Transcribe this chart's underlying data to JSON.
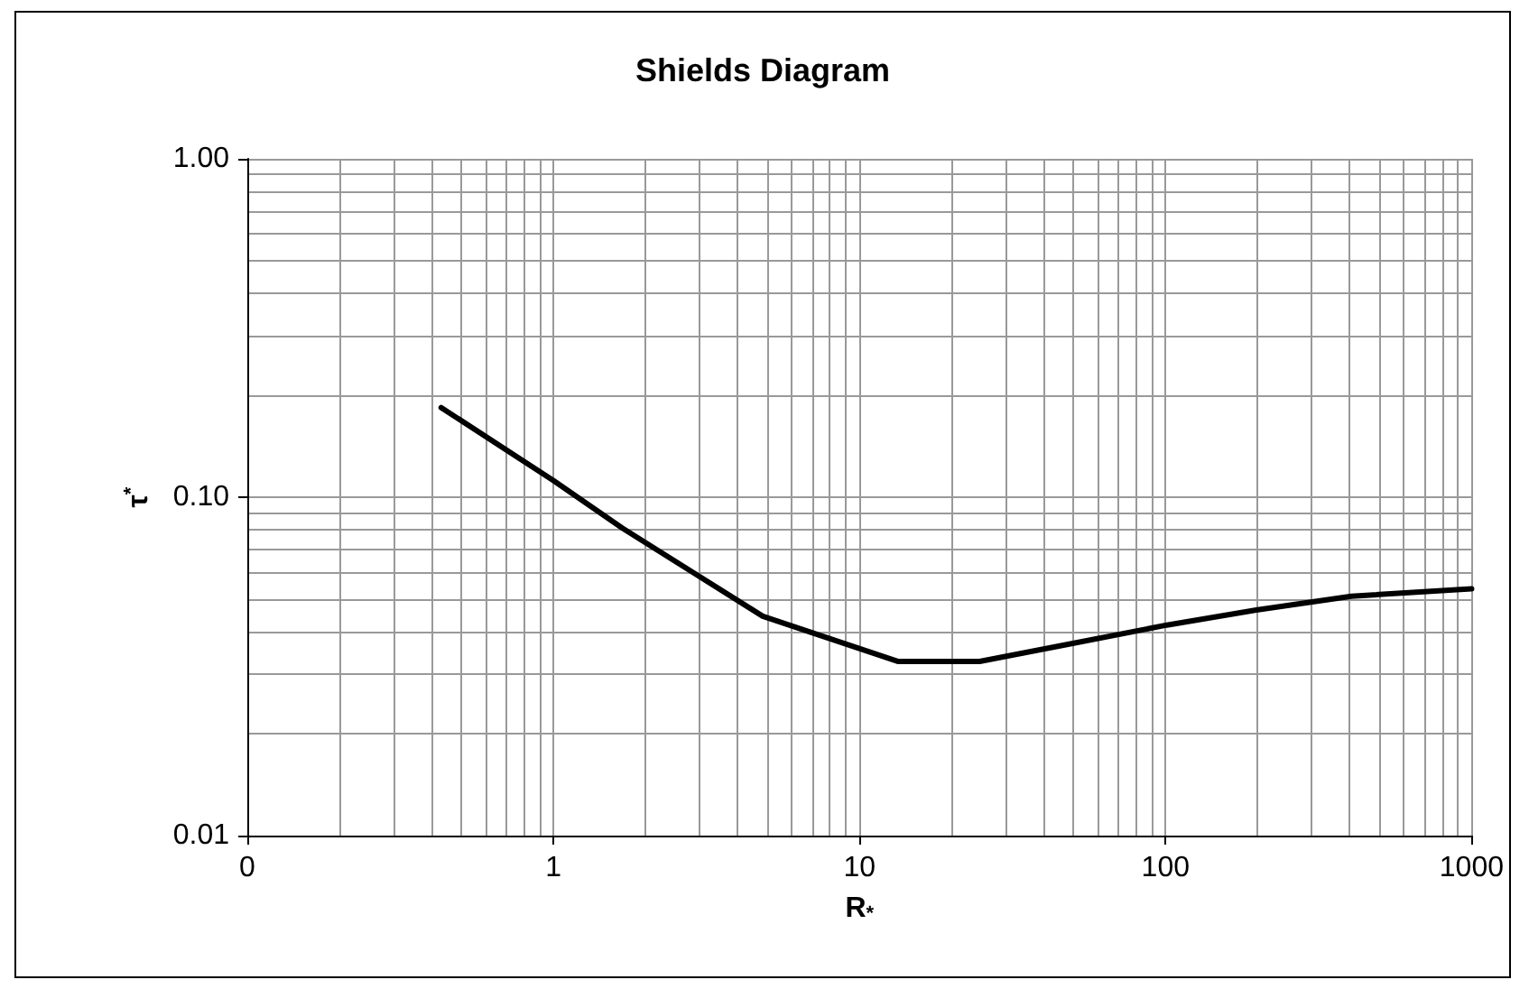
{
  "chart_data": {
    "type": "line",
    "title": "Shields Diagram",
    "xlabel": "R$_{*}$",
    "ylabel": "τ$^{*}$",
    "log": "xy",
    "grid": true,
    "marker": "none",
    "line_style": "solid",
    "xlim": [
      0.1,
      1000
    ],
    "ylim": [
      0.01,
      1
    ],
    "xticks": [
      {
        "value": 0.1,
        "label": "0"
      },
      {
        "value": 0.2,
        "label": null
      },
      {
        "value": 0.3,
        "label": null
      },
      {
        "value": 0.4,
        "label": null
      },
      {
        "value": 0.5,
        "label": null
      },
      {
        "value": 0.6,
        "label": null
      },
      {
        "value": 0.7,
        "label": null
      },
      {
        "value": 0.8,
        "label": null
      },
      {
        "value": 0.9,
        "label": null
      },
      1,
      {
        "value": 2,
        "label": null
      },
      {
        "value": 3,
        "label": null
      },
      {
        "value": 4,
        "label": null
      },
      {
        "value": 5,
        "label": null
      },
      {
        "value": 6,
        "label": null
      },
      {
        "value": 7,
        "label": null
      },
      {
        "value": 8,
        "label": null
      },
      {
        "value": 9,
        "label": null
      },
      10,
      {
        "value": 20,
        "label": null
      },
      {
        "value": 30,
        "label": null
      },
      {
        "value": 40,
        "label": null
      },
      {
        "value": 50,
        "label": null
      },
      {
        "value": 60,
        "label": null
      },
      {
        "value": 70,
        "label": null
      },
      {
        "value": 80,
        "label": null
      },
      {
        "value": 90,
        "label": null
      },
      100,
      {
        "value": 200,
        "label": null
      },
      {
        "value": 300,
        "label": null
      },
      {
        "value": 400,
        "label": null
      },
      {
        "value": 500,
        "label": null
      },
      {
        "value": 600,
        "label": null
      },
      {
        "value": 700,
        "label": null
      },
      {
        "value": 800,
        "label": null
      },
      {
        "value": 900,
        "label": null
      },
      1000
    ],
    "yticks": [
      {
        "value": 0.01,
        "label": "0.01"
      },
      {
        "value": 0.02,
        "label": null
      },
      {
        "value": 0.03,
        "label": null
      },
      {
        "value": 0.04,
        "label": null
      },
      {
        "value": 0.05,
        "label": null
      },
      {
        "value": 0.06,
        "label": null
      },
      {
        "value": 0.07,
        "label": null
      },
      {
        "value": 0.08,
        "label": null
      },
      {
        "value": 0.09,
        "label": null
      },
      {
        "value": 0.1,
        "label": "0.10"
      },
      {
        "value": 0.2,
        "label": null
      },
      {
        "value": 0.3,
        "label": null
      },
      {
        "value": 0.4,
        "label": null
      },
      {
        "value": 0.5,
        "label": null
      },
      {
        "value": 0.6,
        "label": null
      },
      {
        "value": 0.7,
        "label": null
      },
      {
        "value": 0.8,
        "label": null
      },
      {
        "value": 0.9,
        "label": null
      },
      {
        "value": 1,
        "label": "1.00"
      }
    ],
    "series": [
      {
        "color": "#000000",
        "x": [
          0.43,
          1.0,
          1.68,
          4.83,
          13.4,
          24.7,
          46.8,
          101,
          198,
          405,
          1000
        ],
        "values": [
          0.184,
          0.112,
          0.081,
          0.0445,
          0.0327,
          0.0327,
          0.0366,
          0.0419,
          0.0464,
          0.051,
          0.0536
        ]
      }
    ]
  }
}
